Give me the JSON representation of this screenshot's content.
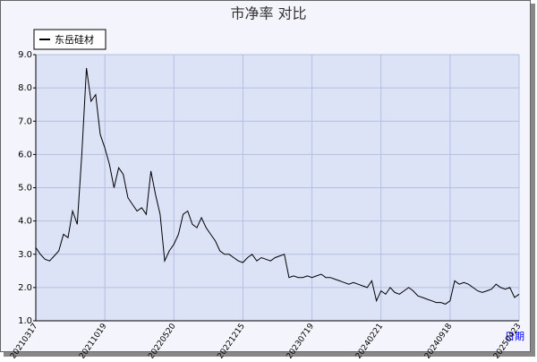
{
  "chart_data": {
    "type": "line",
    "title": "市净率  对比",
    "x_label": "日期",
    "categories": [
      "20210317",
      null,
      null,
      null,
      null,
      null,
      null,
      null,
      null,
      null,
      null,
      null,
      null,
      null,
      null,
      "20211019",
      null,
      null,
      null,
      null,
      null,
      null,
      null,
      null,
      null,
      null,
      null,
      null,
      null,
      null,
      "20220520",
      null,
      null,
      null,
      null,
      null,
      null,
      null,
      null,
      null,
      null,
      null,
      null,
      null,
      null,
      "20221215",
      null,
      null,
      null,
      null,
      null,
      null,
      null,
      null,
      null,
      null,
      null,
      null,
      null,
      null,
      "20230719",
      null,
      null,
      null,
      null,
      null,
      null,
      null,
      null,
      null,
      null,
      null,
      null,
      null,
      null,
      "20240221",
      null,
      null,
      null,
      null,
      null,
      null,
      null,
      null,
      null,
      null,
      null,
      null,
      null,
      null,
      "20240918",
      null,
      null,
      null,
      null,
      null,
      null,
      null,
      null,
      null,
      null,
      null,
      null,
      null,
      null,
      "20250423"
    ],
    "series": [
      {
        "name": "东岳硅材",
        "color": "#000000",
        "values": [
          3.2,
          3.0,
          2.85,
          2.8,
          2.95,
          3.1,
          3.6,
          3.5,
          4.3,
          3.9,
          6.0,
          8.6,
          7.6,
          7.8,
          6.6,
          6.2,
          5.7,
          5.0,
          5.6,
          5.4,
          4.7,
          4.5,
          4.3,
          4.4,
          4.2,
          5.5,
          4.8,
          4.2,
          2.8,
          3.1,
          3.3,
          3.6,
          4.2,
          4.3,
          3.9,
          3.8,
          4.1,
          3.8,
          3.6,
          3.4,
          3.1,
          3.0,
          3.0,
          2.9,
          2.8,
          2.75,
          2.9,
          3.0,
          2.8,
          2.9,
          2.85,
          2.8,
          2.9,
          2.95,
          3.0,
          2.3,
          2.35,
          2.3,
          2.3,
          2.35,
          2.3,
          2.35,
          2.4,
          2.3,
          2.3,
          2.25,
          2.2,
          2.15,
          2.1,
          2.15,
          2.1,
          2.05,
          2.0,
          2.2,
          1.6,
          1.9,
          1.8,
          2.0,
          1.85,
          1.8,
          1.9,
          2.0,
          1.9,
          1.75,
          1.7,
          1.65,
          1.6,
          1.55,
          1.55,
          1.5,
          1.6,
          2.2,
          2.1,
          2.15,
          2.1,
          2.0,
          1.9,
          1.85,
          1.9,
          1.95,
          2.1,
          2.0,
          1.95,
          2.0,
          1.7,
          1.8
        ]
      }
    ],
    "ylim": [
      1,
      9
    ],
    "yticks": [
      {
        "value": 1,
        "label": "1.0"
      },
      {
        "value": 2,
        "label": "2.0"
      },
      {
        "value": 3,
        "label": "3.0"
      },
      {
        "value": 4,
        "label": "4.0"
      },
      {
        "value": 5,
        "label": "5.0"
      },
      {
        "value": 6,
        "label": "6.0"
      },
      {
        "value": 7,
        "label": "7.0"
      },
      {
        "value": 8,
        "label": "8.0"
      },
      {
        "value": 9,
        "label": "9.0"
      }
    ],
    "grid": true,
    "legend": "top-left"
  }
}
